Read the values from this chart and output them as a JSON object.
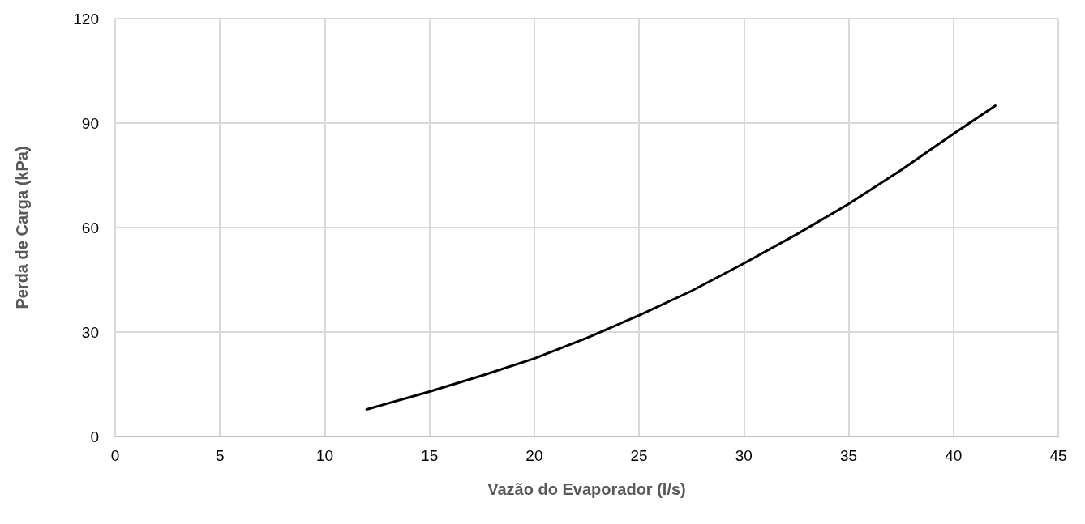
{
  "chart_data": {
    "type": "line",
    "xlabel": "Vazão do Evaporador (l/s)",
    "ylabel": "Perda de Carga (kPa)",
    "xlim": [
      0,
      45
    ],
    "xticks": [
      0,
      5,
      10,
      15,
      20,
      25,
      30,
      35,
      40,
      45
    ],
    "ylim": [
      0,
      120
    ],
    "yticks": [
      0,
      30,
      60,
      90,
      120
    ],
    "grid": true,
    "marker": "none",
    "line_style": "solid",
    "series": [
      {
        "color": "#000000",
        "x": [
          12,
          13,
          15,
          17.5,
          20,
          22.5,
          25,
          27.5,
          30,
          32.5,
          35,
          37.5,
          40,
          42
        ],
        "values": [
          7.8,
          9.5,
          12.9,
          17.5,
          22.4,
          28.3,
          34.8,
          41.8,
          49.7,
          58,
          66.8,
          76.5,
          86.9,
          95
        ]
      }
    ]
  }
}
